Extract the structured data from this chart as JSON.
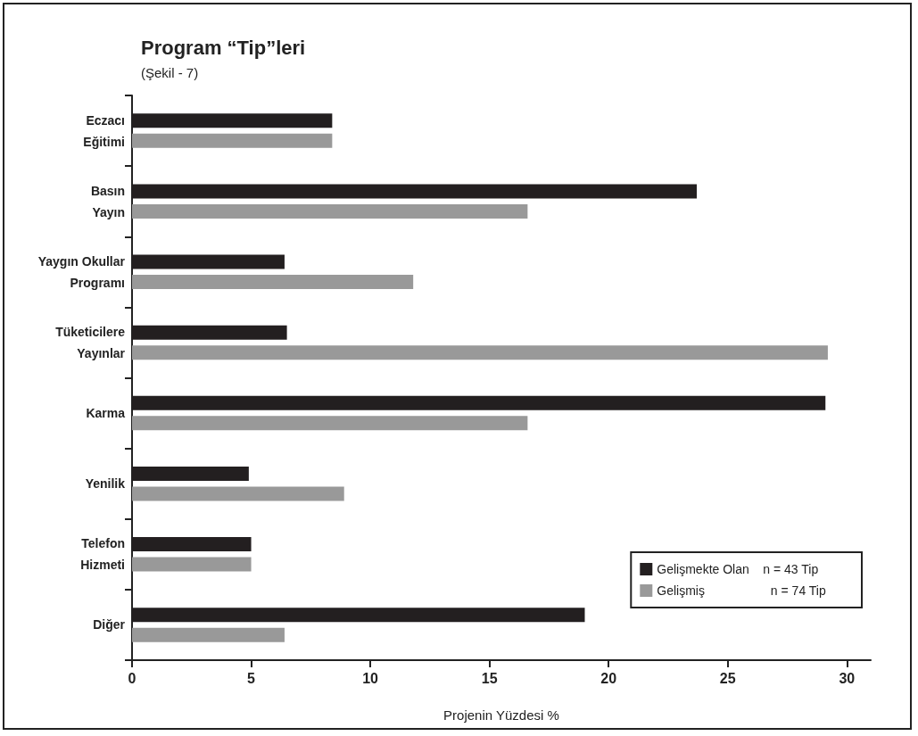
{
  "chart_data": {
    "type": "bar",
    "orientation": "horizontal",
    "title": "Program “Tip”leri",
    "subtitle": "(Şekil - 7)",
    "xlabel": "Projenin Yüzdesi %",
    "categories": [
      "Eczacı\nEğitimi",
      "Basın\nYayın",
      "Yaygın Okullar\nProgramı",
      "Tüketicilere\nYayınlar",
      "Karma",
      "Yenilik",
      "Telefon\nHizmeti",
      "Diğer"
    ],
    "series": [
      {
        "name": "Gelişmekte Olan    n = 43 Tip",
        "color": "#231f20",
        "values": [
          8.4,
          23.7,
          6.4,
          6.5,
          29.1,
          4.9,
          5.0,
          19.0
        ]
      },
      {
        "name": "Gelişmiş                   n = 74 Tip",
        "color": "#999999",
        "values": [
          8.4,
          16.6,
          11.8,
          29.2,
          16.6,
          8.9,
          5.0,
          6.4
        ]
      }
    ],
    "xlim": [
      0,
      31
    ],
    "xticks": [
      0,
      5,
      10,
      15,
      20,
      25,
      30
    ],
    "grid": false,
    "legend": "bottom right"
  }
}
